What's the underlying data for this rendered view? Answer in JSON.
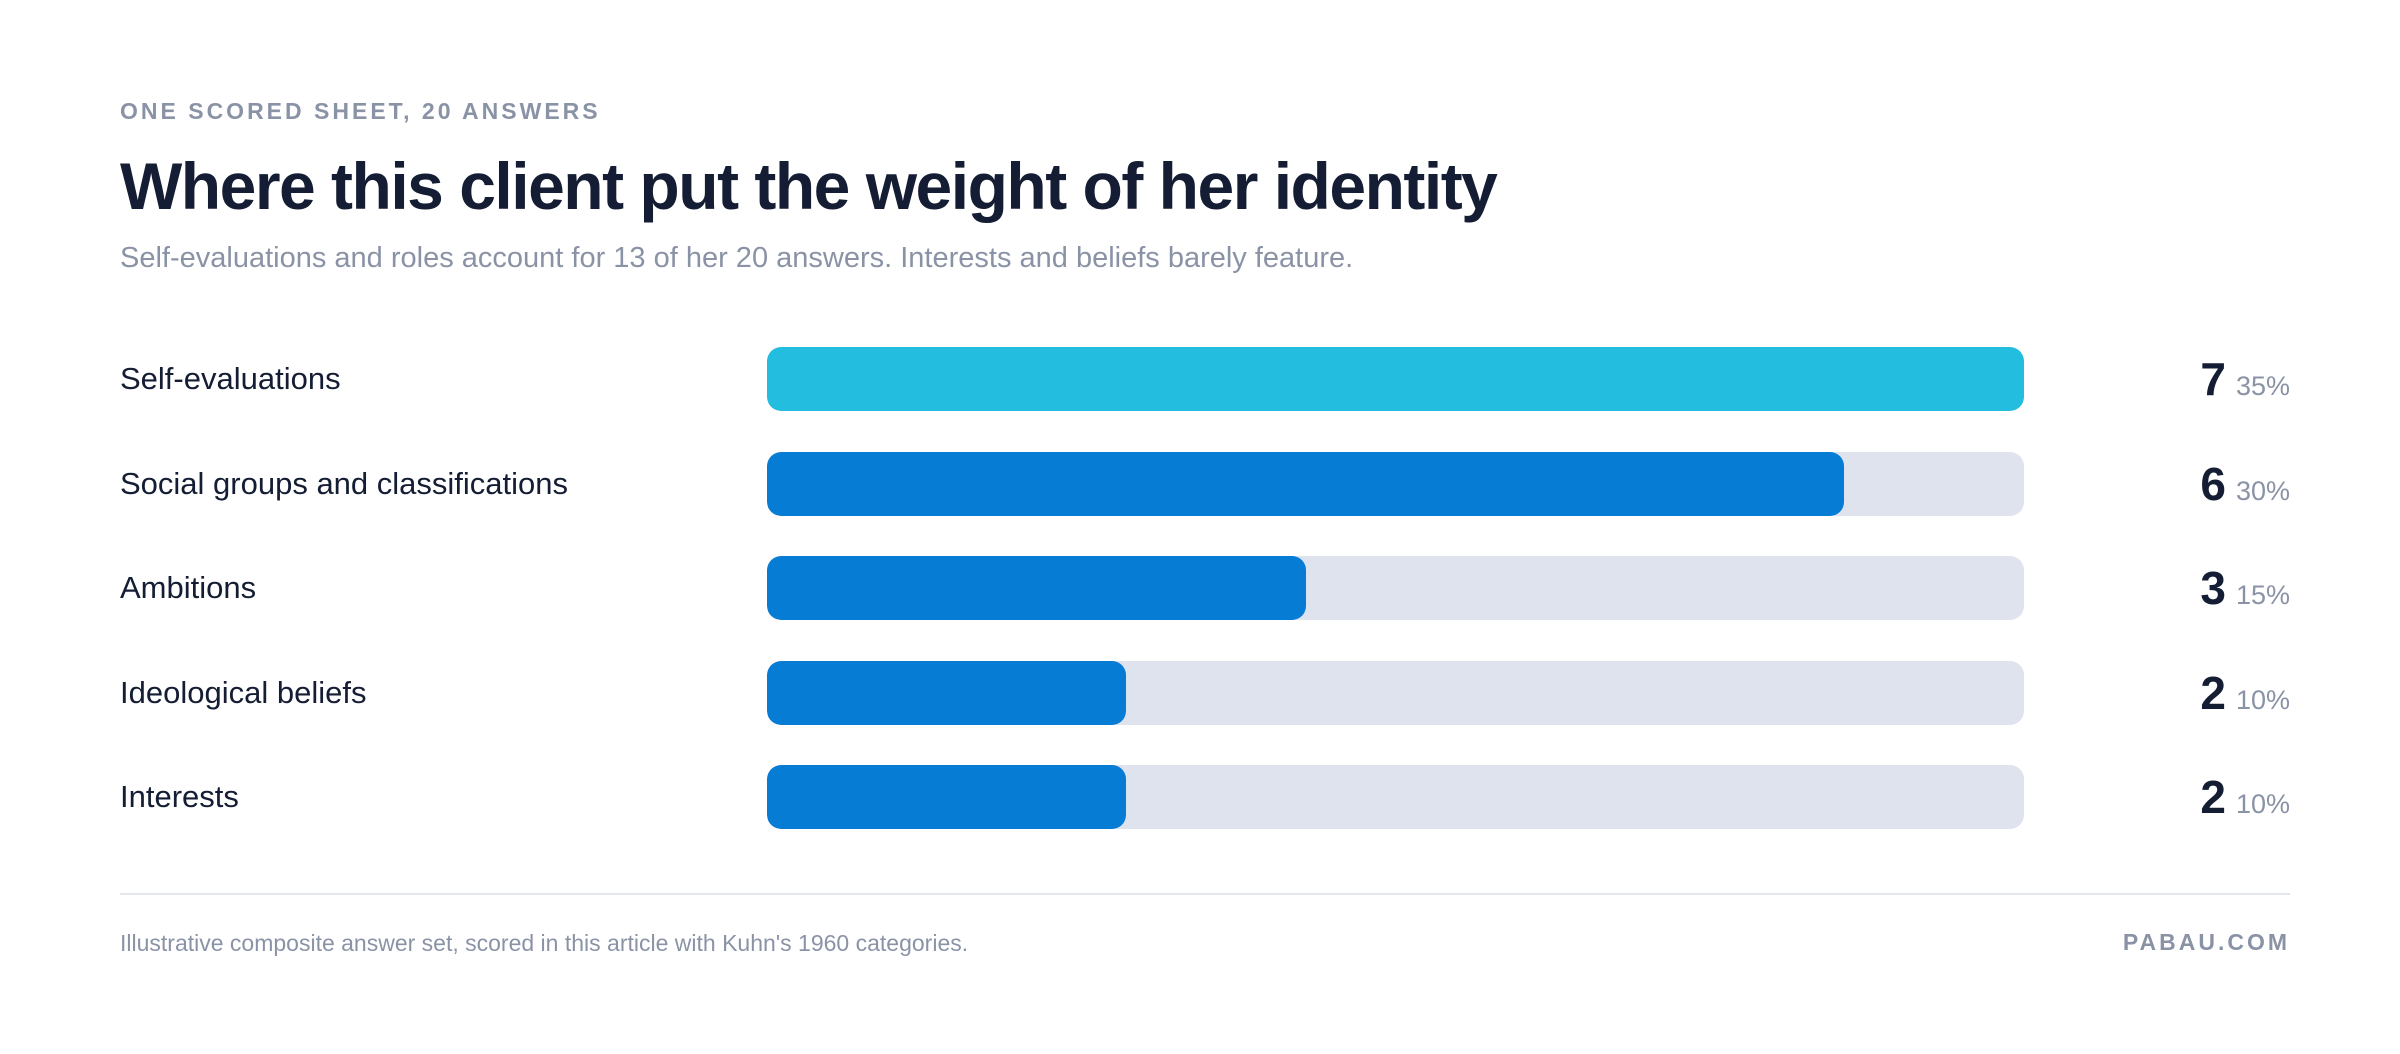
{
  "header": {
    "eyebrow": "ONE SCORED SHEET, 20 ANSWERS",
    "title": "Where this client put the weight of her identity",
    "subtitle": "Self-evaluations and roles account for 13 of her 20 answers. Interests and beliefs barely feature."
  },
  "chart_data": {
    "type": "bar",
    "orientation": "horizontal",
    "title": "Where this client put the weight of her identity",
    "subtitle": "Self-evaluations and roles account for 13 of her 20 answers. Interests and beliefs barely feature.",
    "xlabel": "",
    "ylabel": "",
    "xlim": [
      0,
      7
    ],
    "total": 20,
    "grid": false,
    "categories": [
      "Self-evaluations",
      "Social groups and classifications",
      "Ambitions",
      "Ideological beliefs",
      "Interests"
    ],
    "values": [
      7,
      6,
      3,
      2,
      2
    ],
    "percent_labels": [
      "35%",
      "30%",
      "15%",
      "10%",
      "10%"
    ],
    "colors": {
      "highlight": "#23bde0",
      "bar": "#077cd4",
      "track": "#dfe3ee"
    }
  },
  "footer": {
    "note": "Illustrative composite answer set, scored in this article with Kuhn's 1960 categories.",
    "brand": "PABAU.COM"
  }
}
